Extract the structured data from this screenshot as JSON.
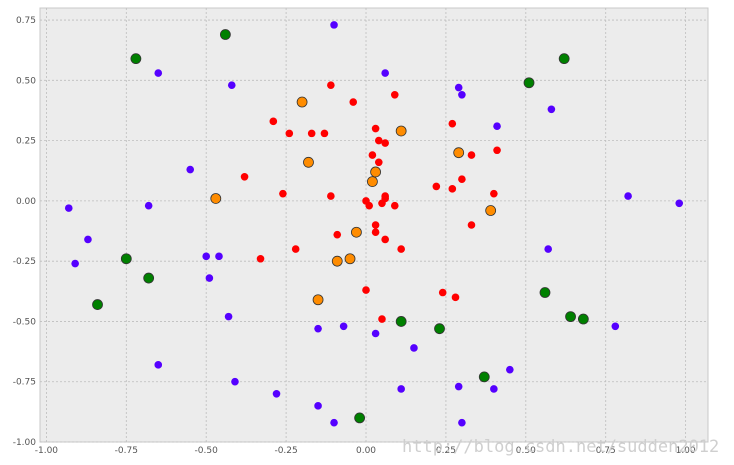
{
  "chart_data": {
    "type": "scatter",
    "title": "",
    "xlabel": "",
    "ylabel": "",
    "xlim": [
      -1.02,
      1.07
    ],
    "ylim": [
      -1.0,
      0.8
    ],
    "grid": true,
    "xticks": [
      -1.0,
      -0.75,
      -0.5,
      -0.25,
      0.0,
      0.25,
      0.5,
      0.75,
      1.0
    ],
    "xtick_labels": [
      "-1.00",
      "-0.75",
      "-0.50",
      "-0.25",
      "0.00",
      "0.25",
      "0.50",
      "0.75",
      "1.00"
    ],
    "yticks": [
      -1.0,
      -0.75,
      -0.5,
      -0.25,
      0.0,
      0.25,
      0.5,
      0.75
    ],
    "ytick_labels": [
      "-1.00",
      "-0.75",
      "-0.50",
      "-0.25",
      "0.00",
      "0.25",
      "0.50",
      "0.75"
    ],
    "series": [
      {
        "color": "#ff0000",
        "marker": "small",
        "points": [
          [
            -0.11,
            0.48
          ],
          [
            -0.04,
            0.41
          ],
          [
            0.09,
            0.44
          ],
          [
            -0.29,
            0.33
          ],
          [
            -0.24,
            0.28
          ],
          [
            -0.17,
            0.28
          ],
          [
            -0.13,
            0.28
          ],
          [
            0.03,
            0.3
          ],
          [
            0.04,
            0.25
          ],
          [
            0.06,
            0.24
          ],
          [
            0.27,
            0.32
          ],
          [
            0.02,
            0.19
          ],
          [
            0.04,
            0.16
          ],
          [
            0.33,
            0.19
          ],
          [
            0.41,
            0.21
          ],
          [
            0.06,
            0.02
          ],
          [
            0.06,
            0.01
          ],
          [
            -0.38,
            0.1
          ],
          [
            0.22,
            0.06
          ],
          [
            0.27,
            0.05
          ],
          [
            0.3,
            0.09
          ],
          [
            0.4,
            0.03
          ],
          [
            -0.26,
            0.03
          ],
          [
            -0.11,
            0.02
          ],
          [
            0.0,
            0.0
          ],
          [
            0.01,
            -0.02
          ],
          [
            0.05,
            -0.01
          ],
          [
            0.09,
            -0.02
          ],
          [
            0.03,
            -0.1
          ],
          [
            0.03,
            -0.13
          ],
          [
            0.06,
            -0.16
          ],
          [
            0.33,
            -0.1
          ],
          [
            -0.09,
            -0.14
          ],
          [
            -0.22,
            -0.2
          ],
          [
            0.11,
            -0.2
          ],
          [
            -0.33,
            -0.24
          ],
          [
            0.0,
            -0.37
          ],
          [
            0.24,
            -0.38
          ],
          [
            0.28,
            -0.4
          ],
          [
            0.05,
            -0.49
          ]
        ]
      },
      {
        "color": "#ff8c00",
        "marker": "medium",
        "points": [
          [
            -0.2,
            0.41
          ],
          [
            0.11,
            0.29
          ],
          [
            0.29,
            0.2
          ],
          [
            -0.18,
            0.16
          ],
          [
            0.03,
            0.12
          ],
          [
            0.02,
            0.08
          ],
          [
            -0.47,
            0.01
          ],
          [
            0.39,
            -0.04
          ],
          [
            -0.03,
            -0.13
          ],
          [
            -0.05,
            -0.24
          ],
          [
            -0.09,
            -0.25
          ],
          [
            -0.15,
            -0.41
          ]
        ]
      },
      {
        "color": "#5500ff",
        "marker": "small",
        "points": [
          [
            -0.1,
            0.73
          ],
          [
            -0.65,
            0.53
          ],
          [
            0.06,
            0.53
          ],
          [
            -0.42,
            0.48
          ],
          [
            0.29,
            0.47
          ],
          [
            0.3,
            0.44
          ],
          [
            0.58,
            0.38
          ],
          [
            0.41,
            0.31
          ],
          [
            -0.55,
            0.13
          ],
          [
            0.82,
            0.02
          ],
          [
            0.98,
            -0.01
          ],
          [
            -0.93,
            -0.03
          ],
          [
            -0.68,
            -0.02
          ],
          [
            -0.87,
            -0.16
          ],
          [
            0.57,
            -0.2
          ],
          [
            -0.5,
            -0.23
          ],
          [
            -0.46,
            -0.23
          ],
          [
            -0.91,
            -0.26
          ],
          [
            -0.49,
            -0.32
          ],
          [
            -0.43,
            -0.48
          ],
          [
            -0.07,
            -0.52
          ],
          [
            -0.15,
            -0.53
          ],
          [
            0.78,
            -0.52
          ],
          [
            0.03,
            -0.55
          ],
          [
            0.15,
            -0.61
          ],
          [
            -0.65,
            -0.68
          ],
          [
            0.45,
            -0.7
          ],
          [
            -0.41,
            -0.75
          ],
          [
            0.29,
            -0.77
          ],
          [
            0.4,
            -0.78
          ],
          [
            0.11,
            -0.78
          ],
          [
            -0.28,
            -0.8
          ],
          [
            -0.15,
            -0.85
          ],
          [
            -0.1,
            -0.92
          ],
          [
            0.3,
            -0.92
          ]
        ]
      },
      {
        "color": "#008000",
        "marker": "large",
        "points": [
          [
            -0.44,
            0.69
          ],
          [
            -0.72,
            0.59
          ],
          [
            0.62,
            0.59
          ],
          [
            0.51,
            0.49
          ],
          [
            -0.75,
            -0.24
          ],
          [
            -0.68,
            -0.32
          ],
          [
            -0.84,
            -0.43
          ],
          [
            0.56,
            -0.38
          ],
          [
            0.64,
            -0.48
          ],
          [
            0.68,
            -0.49
          ],
          [
            0.11,
            -0.5
          ],
          [
            0.23,
            -0.53
          ],
          [
            0.37,
            -0.73
          ],
          [
            -0.02,
            -0.9
          ]
        ]
      }
    ]
  },
  "watermark": "http://blog.csdn.net/sudden2012"
}
